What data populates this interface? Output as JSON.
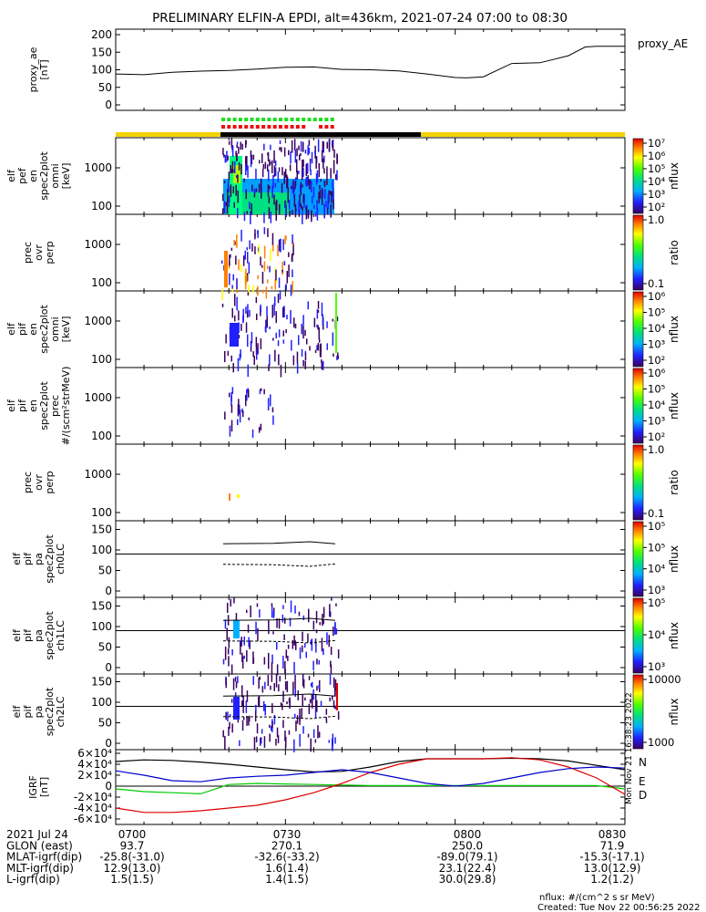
{
  "title": "PRELIMINARY ELFIN-A EPDI, alt=436km, 2021-07-24 07:00 to 08:30",
  "chart_data": [
    {
      "type": "line",
      "panel": "proxy_ae",
      "ylabel": [
        "proxy_ae",
        "[nT]"
      ],
      "legend": "proxy_AE",
      "ylim": [
        0,
        210
      ],
      "yticks": [
        0,
        50,
        100,
        150,
        200
      ],
      "x_minutes": [
        0,
        5,
        10,
        15,
        20,
        25,
        30,
        35,
        40,
        45,
        50,
        55,
        60,
        62,
        65,
        68,
        70,
        75,
        80,
        83,
        85,
        90
      ],
      "values": [
        88,
        86,
        93,
        96,
        98,
        102,
        107,
        108,
        101,
        100,
        97,
        88,
        78,
        77,
        80,
        103,
        118,
        120,
        140,
        165,
        167,
        167
      ]
    },
    {
      "type": "heatmap",
      "panel": "elf_pef_en_spec2plot_omni",
      "ylabel": [
        "elf",
        "pef",
        "en",
        "spec2plot",
        "omni",
        "[keV]"
      ],
      "yticks": [
        "100",
        "1000"
      ],
      "colorbar": {
        "label": "nflux",
        "ticks": [
          "10²",
          "10³",
          "10⁴",
          "10⁵",
          "10⁶",
          "10⁷"
        ]
      }
    },
    {
      "type": "heatmap",
      "panel": "pef_prec_ovr_perp",
      "ylabel": [
        "prec",
        "ovr",
        "perp"
      ],
      "yticks": [
        "100",
        "1000"
      ],
      "colorbar": {
        "label": "ratio",
        "ticks": [
          "0.1",
          "1.0"
        ]
      }
    },
    {
      "type": "heatmap",
      "panel": "elf_pif_en_spec2plot_omni",
      "ylabel": [
        "elf",
        "pif",
        "en",
        "spec2plot",
        "omni",
        "[keV]"
      ],
      "yticks": [
        "100",
        "1000"
      ],
      "colorbar": {
        "label": "nflux",
        "ticks": [
          "10²",
          "10³",
          "10⁴",
          "10⁵",
          "10⁶"
        ]
      }
    },
    {
      "type": "heatmap",
      "panel": "elf_pif_en_spec2plot_prec",
      "ylabel": [
        "elf",
        "pif",
        "en",
        "spec2plot",
        "prec",
        "#/(scm²strMeV)"
      ],
      "yticks": [
        "100",
        "1000"
      ],
      "colorbar": {
        "label": "nflux",
        "ticks": [
          "10²",
          "10³",
          "10⁴",
          "10⁵",
          "10⁶"
        ]
      }
    },
    {
      "type": "heatmap",
      "panel": "pif_prec_ovr_perp",
      "ylabel": [
        "prec",
        "ovr",
        "perp"
      ],
      "yticks": [
        "100",
        "1000"
      ],
      "colorbar": {
        "label": "ratio",
        "ticks": [
          "0.1",
          "1.0"
        ]
      }
    },
    {
      "type": "heatmap",
      "panel": "elf_pif_pa_spec2plot_ch0LC",
      "ylabel": [
        "elf",
        "pif",
        "pa",
        "spec2plot",
        "ch0LC"
      ],
      "yticks": [
        "0",
        "50",
        "100",
        "150"
      ],
      "colorbar": {
        "label": "nflux",
        "ticks": [
          "10³",
          "10⁴",
          "10⁵",
          "10⁵"
        ]
      }
    },
    {
      "type": "heatmap",
      "panel": "elf_pif_pa_spec2plot_ch1LC",
      "ylabel": [
        "elf",
        "pif",
        "pa",
        "spec2plot",
        "ch1LC"
      ],
      "yticks": [
        "0",
        "50",
        "100",
        "150"
      ],
      "colorbar": {
        "label": "nflux",
        "ticks": [
          "10³",
          "10⁴",
          "10⁵"
        ]
      }
    },
    {
      "type": "heatmap",
      "panel": "elf_pif_pa_spec2plot_ch2LC",
      "ylabel": [
        "elf",
        "pif",
        "pa",
        "spec2plot",
        "ch2LC"
      ],
      "yticks": [
        "0",
        "50",
        "100",
        "150"
      ],
      "colorbar": {
        "label": "nflux",
        "ticks": [
          "1000",
          "10000"
        ]
      }
    },
    {
      "type": "line",
      "panel": "IGRF",
      "ylabel": [
        "IGRF",
        "[nT]"
      ],
      "ylim": [
        -65000,
        65000
      ],
      "yticks": [
        "-6×10⁴",
        "-4×10⁴",
        "-2×10⁴",
        "0",
        "2×10⁴",
        "4×10⁴",
        "6×10⁴"
      ],
      "x_minutes": [
        0,
        5,
        10,
        15,
        20,
        25,
        30,
        35,
        40,
        45,
        50,
        55,
        60,
        65,
        70,
        75,
        80,
        85,
        90
      ],
      "series": [
        {
          "name": "N",
          "color": "#000000",
          "values": [
            45000,
            48000,
            47000,
            44000,
            40000,
            35000,
            30000,
            26000,
            27000,
            35000,
            45000,
            50000,
            50000,
            50000,
            51000,
            50000,
            46000,
            38000,
            30000
          ]
        },
        {
          "name": "E",
          "color": "#00cc00",
          "values": [
            -5000,
            -10000,
            -12000,
            -14000,
            3000,
            5000,
            4000,
            3000,
            2000,
            1000,
            1000,
            1000,
            1000,
            1000,
            1000,
            1000,
            1000,
            1000,
            -5000
          ]
        },
        {
          "name": "D",
          "color": "#dd0000",
          "values": [
            -40000,
            -48000,
            -48000,
            -45000,
            -40000,
            -35000,
            -25000,
            -12000,
            5000,
            25000,
            40000,
            50000,
            50000,
            50000,
            52000,
            48000,
            35000,
            15000,
            -15000
          ]
        },
        {
          "name": "",
          "color": "#0000cc",
          "values": [
            28000,
            20000,
            10000,
            8000,
            15000,
            18000,
            20000,
            25000,
            30000,
            25000,
            15000,
            5000,
            0,
            5000,
            15000,
            25000,
            32000,
            35000,
            33000
          ]
        }
      ]
    }
  ],
  "segments": {
    "ticks": "green over red",
    "bar": "yellow / black / yellow"
  },
  "side_stamp": "Mon Nov 21 16:38:23 2022",
  "xaxis": {
    "rows": [
      {
        "label": "2021 Jul 24",
        "values": [
          "0700",
          "0730",
          "0800",
          "0830"
        ]
      },
      {
        "label": "GLON (east)",
        "values": [
          "93.7",
          "270.1",
          "250.0",
          "71.9"
        ]
      },
      {
        "label": "MLAT-igrf(dip)",
        "values": [
          "-25.8(-31.0)",
          "-32.6(-33.2)",
          "-89.0(79.1)",
          "-15.3(-17.1)"
        ]
      },
      {
        "label": "MLT-igrf(dip)",
        "values": [
          "12.9(13.0)",
          "1.6(1.4)",
          "23.1(22.4)",
          "13.0(12.9)"
        ]
      },
      {
        "label": "L-igrf(dip)",
        "values": [
          "1.5(1.5)",
          "1.4(1.5)",
          "30.0(29.8)",
          "1.2(1.2)"
        ]
      }
    ]
  },
  "footer": {
    "units": "nflux: #/(cm^2 s sr MeV)",
    "created": "Created: Tue Nov 22 00:56:25 2022"
  }
}
